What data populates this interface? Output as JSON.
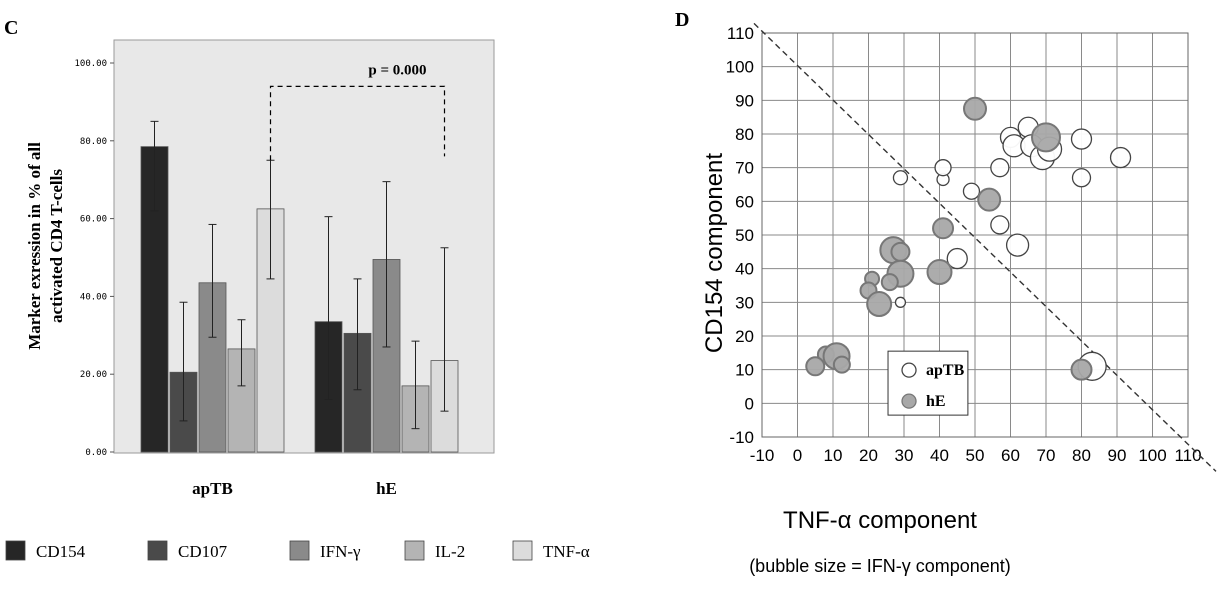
{
  "chart_data": [
    {
      "panel_label": "C",
      "type": "bar",
      "ylabel_lines": [
        "Marker exression in % of all",
        "activated CD4 T-cells"
      ],
      "ylim": [
        0,
        100
      ],
      "yticks": [
        "0.00",
        "20.00",
        "40.00",
        "60.00",
        "80.00",
        "100.00"
      ],
      "categories": [
        "apTB",
        "hE"
      ],
      "series": [
        {
          "name": "CD154",
          "color": "#262626",
          "values": [
            78.5,
            33.5
          ],
          "err_low": [
            62,
            13.5
          ],
          "err_high": [
            85,
            60.5
          ]
        },
        {
          "name": "CD107",
          "color": "#4a4a4a",
          "values": [
            20.5,
            30.5
          ],
          "err_low": [
            8,
            16
          ],
          "err_high": [
            38.5,
            44.5
          ]
        },
        {
          "name": "IFN-γ",
          "color": "#8a8a8a",
          "values": [
            43.5,
            49.5
          ],
          "err_low": [
            29.5,
            27
          ],
          "err_high": [
            58.5,
            69.5
          ]
        },
        {
          "name": "IL-2",
          "color": "#b4b4b4",
          "values": [
            26.5,
            17
          ],
          "err_low": [
            17,
            6
          ],
          "err_high": [
            34,
            28.5
          ]
        },
        {
          "name": "TNF-α",
          "color": "#dcdcdc",
          "values": [
            62.5,
            23.5
          ],
          "err_low": [
            44.5,
            10.5
          ],
          "err_high": [
            75,
            52.5
          ]
        }
      ],
      "annotation": {
        "text": "p = 0.000"
      },
      "plot_background": "#e8e8e8"
    },
    {
      "panel_label": "D",
      "type": "scatter",
      "xlabel": "TNF-α component",
      "ylabel": "CD154 component",
      "note": "(bubble size = IFN-γ component)",
      "xlim": [
        -10,
        110
      ],
      "ylim": [
        -10,
        110
      ],
      "xticks": [
        "-10",
        "0",
        "10",
        "20",
        "30",
        "40",
        "50",
        "60",
        "70",
        "80",
        "90",
        "100",
        "110"
      ],
      "yticks": [
        "-10",
        "0",
        "10",
        "20",
        "30",
        "40",
        "50",
        "60",
        "70",
        "80",
        "90",
        "100",
        "110"
      ],
      "grid": true,
      "legend_position": "bottom-center",
      "diagonal_line": {
        "from": [
          -10,
          110
        ],
        "to": [
          110,
          -10
        ],
        "style": "dashed"
      },
      "series": [
        {
          "name": "apTB",
          "color": "#ffffff",
          "points": [
            {
              "x": 29,
              "y": 67,
              "size": 7
            },
            {
              "x": 41,
              "y": 66.5,
              "size": 6
            },
            {
              "x": 41,
              "y": 70,
              "size": 8
            },
            {
              "x": 49,
              "y": 63,
              "size": 8
            },
            {
              "x": 57,
              "y": 70,
              "size": 9
            },
            {
              "x": 57,
              "y": 53,
              "size": 9
            },
            {
              "x": 60,
              "y": 79,
              "size": 10
            },
            {
              "x": 61,
              "y": 76.5,
              "size": 11
            },
            {
              "x": 62,
              "y": 47,
              "size": 11
            },
            {
              "x": 65,
              "y": 82,
              "size": 10
            },
            {
              "x": 66,
              "y": 76.5,
              "size": 11
            },
            {
              "x": 69,
              "y": 73,
              "size": 12
            },
            {
              "x": 71,
              "y": 75.5,
              "size": 12
            },
            {
              "x": 80,
              "y": 78.5,
              "size": 10
            },
            {
              "x": 80,
              "y": 67,
              "size": 9
            },
            {
              "x": 91,
              "y": 73,
              "size": 10
            },
            {
              "x": 45,
              "y": 43,
              "size": 10
            },
            {
              "x": 29,
              "y": 30,
              "size": 5
            },
            {
              "x": 83,
              "y": 11,
              "size": 14
            }
          ]
        },
        {
          "name": "hE",
          "color": "#a8a8a8",
          "points": [
            {
              "x": 50,
              "y": 87.5,
              "size": 11
            },
            {
              "x": 70,
              "y": 79,
              "size": 14
            },
            {
              "x": 54,
              "y": 60.5,
              "size": 11
            },
            {
              "x": 41,
              "y": 52,
              "size": 10
            },
            {
              "x": 27,
              "y": 45.5,
              "size": 13
            },
            {
              "x": 29,
              "y": 45,
              "size": 9
            },
            {
              "x": 29,
              "y": 38.5,
              "size": 13
            },
            {
              "x": 40,
              "y": 39,
              "size": 12
            },
            {
              "x": 21,
              "y": 37,
              "size": 7
            },
            {
              "x": 20,
              "y": 33.5,
              "size": 8
            },
            {
              "x": 26,
              "y": 36,
              "size": 8
            },
            {
              "x": 23,
              "y": 29.5,
              "size": 12
            },
            {
              "x": 8,
              "y": 14.5,
              "size": 8
            },
            {
              "x": 11,
              "y": 14,
              "size": 13
            },
            {
              "x": 5,
              "y": 11,
              "size": 9
            },
            {
              "x": 12.5,
              "y": 11.5,
              "size": 8
            },
            {
              "x": 80,
              "y": 10,
              "size": 10
            }
          ]
        }
      ]
    }
  ]
}
